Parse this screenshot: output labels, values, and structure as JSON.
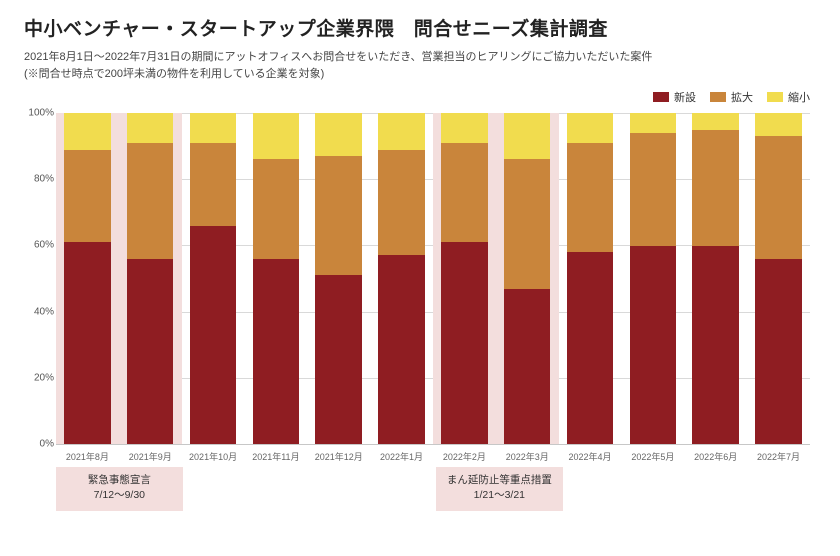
{
  "title": "中小ベンチャー・スタートアップ企業界隈　問合せニーズ集計調査",
  "subtitle_line1": "2021年8月1日～2022年7月31日の期間にアットオフィスへお問合せをいただき、営業担当のヒアリングにご協力いただいた案件",
  "subtitle_line2": "(※問合せ時点で200坪未満の物件を利用している企業を対象)",
  "legend": {
    "items": [
      {
        "label": "新設",
        "color": "#8f1d22"
      },
      {
        "label": "拡大",
        "color": "#c9853b"
      },
      {
        "label": "縮小",
        "color": "#f1dc4e"
      }
    ]
  },
  "chart": {
    "type": "stacked-bar-100",
    "background_color": "#ffffff",
    "grid_color": "#d9d9d9",
    "axis_color": "#c7c7c7",
    "bar_width_ratio": 0.74,
    "y": {
      "min": 0,
      "max": 100,
      "ticks": [
        0,
        20,
        40,
        60,
        80,
        100
      ],
      "tick_suffix": "%",
      "label_fontsize": 10,
      "label_color": "#555555"
    },
    "x_label_fontsize": 9,
    "x_label_color": "#666666",
    "categories": [
      "2021年8月",
      "2021年9月",
      "2021年10月",
      "2021年11月",
      "2021年12月",
      "2022年1月",
      "2022年2月",
      "2022年3月",
      "2022年4月",
      "2022年5月",
      "2022年6月",
      "2022年7月"
    ],
    "series": [
      {
        "key": "shinsetsu",
        "label": "新設",
        "color": "#8f1d22",
        "values": [
          61,
          56,
          66,
          56,
          51,
          57,
          61,
          47,
          58,
          60,
          60,
          56
        ]
      },
      {
        "key": "kakudai",
        "label": "拡大",
        "color": "#c9853b",
        "values": [
          28,
          35,
          25,
          30,
          36,
          32,
          30,
          39,
          33,
          34,
          35,
          37
        ]
      },
      {
        "key": "shukusho",
        "label": "縮小",
        "color": "#f1dc4e",
        "values": [
          11,
          9,
          9,
          14,
          13,
          11,
          9,
          14,
          9,
          6,
          5,
          7
        ]
      }
    ],
    "highlights": [
      {
        "from_index": 0,
        "to_index": 1,
        "color": "#f3dedd"
      },
      {
        "from_index": 6,
        "to_index": 7,
        "color": "#f3dedd"
      }
    ]
  },
  "annotations": [
    {
      "align_index": 0,
      "span": 2,
      "line1": "緊急事態宣言",
      "line2": "7/12～9/30",
      "background": "#f3dedd"
    },
    {
      "align_index": 6,
      "span": 2,
      "line1": "まん延防止等重点措置",
      "line2": "1/21～3/21",
      "background": "#f3dedd"
    }
  ]
}
